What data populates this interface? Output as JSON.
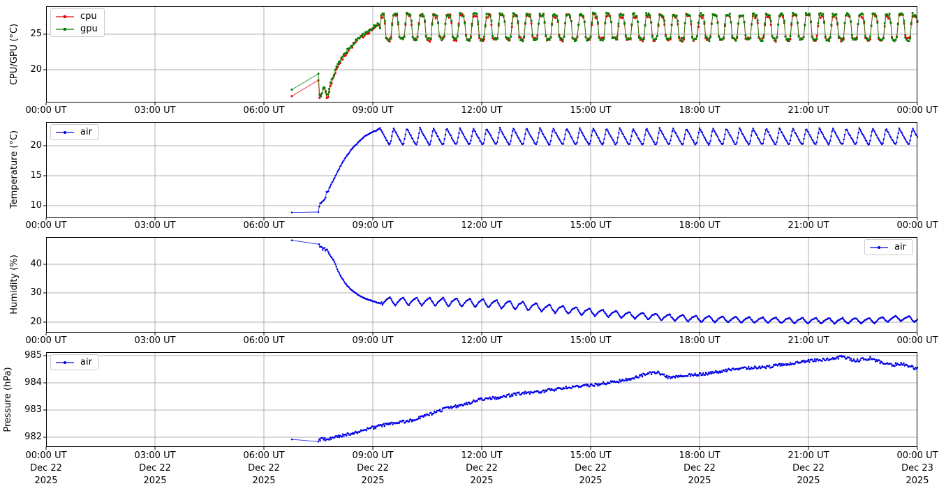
{
  "figure": {
    "background": "#ffffff",
    "frame_color": "#000000",
    "grid_color": "#b0b0b0",
    "legend_border": "#cccccc",
    "text_color": "#000000"
  },
  "chart_data": [
    {
      "id": "cpu-gpu-temperature",
      "type": "line",
      "ylabel": "CPU/GPU (°C)",
      "ylim": [
        15.4,
        28.9
      ],
      "yticks": [
        20,
        25
      ],
      "xlim_hours": [
        0,
        24
      ],
      "xticks_hours": [
        0,
        3,
        6,
        9,
        12,
        15,
        18,
        21,
        24
      ],
      "xtick_labels": [
        "00:00 UT",
        "03:00 UT",
        "06:00 UT",
        "09:00 UT",
        "12:00 UT",
        "15:00 UT",
        "18:00 UT",
        "21:00 UT",
        "00:00 UT"
      ],
      "grid": true,
      "legend": {
        "position": "top-left",
        "entries": [
          {
            "label": "cpu",
            "color": "#e60000",
            "marker": "square"
          },
          {
            "label": "gpu",
            "color": "#008000",
            "marker": "square"
          }
        ]
      },
      "series": [
        {
          "name": "cpu",
          "color": "#e60000",
          "marker": "square",
          "marker_size": 2.8,
          "sample_minutes": 2,
          "noise": 0.28,
          "seed": 7,
          "sparse_points": [
            [
              6.77,
              16.3
            ]
          ],
          "base": [
            [
              7.5,
              18.8
            ],
            [
              7.53,
              16.3
            ],
            [
              7.58,
              16.1
            ],
            [
              7.63,
              17.3
            ],
            [
              7.68,
              17.5
            ],
            [
              7.72,
              16.2
            ],
            [
              7.78,
              16.1
            ],
            [
              7.83,
              17.8
            ],
            [
              7.92,
              18.9
            ],
            [
              8.0,
              20.2
            ],
            [
              8.17,
              21.6
            ],
            [
              8.33,
              22.8
            ],
            [
              8.5,
              23.7
            ],
            [
              8.67,
              24.5
            ],
            [
              8.83,
              25.2
            ],
            [
              9.0,
              25.7
            ],
            [
              9.19,
              26.4
            ],
            [
              9.2,
              25.9
            ],
            [
              24,
              25.9
            ]
          ],
          "osc": {
            "start": 9.2,
            "period_minutes": 22,
            "phase": 0,
            "amplitude": [
              [
                9.2,
                1.7
              ],
              [
                24,
                1.7
              ]
            ],
            "wave": [
              [
                0,
                1
              ],
              [
                0.32,
                0.9
              ],
              [
                0.38,
                0.2
              ],
              [
                0.45,
                -0.75
              ],
              [
                0.55,
                -0.95
              ],
              [
                0.8,
                -1
              ],
              [
                0.88,
                -0.2
              ],
              [
                0.95,
                0.8
              ],
              [
                1,
                1
              ]
            ]
          }
        },
        {
          "name": "gpu",
          "color": "#008000",
          "marker": "square",
          "marker_size": 2.8,
          "sample_minutes": 2,
          "noise": 0.22,
          "seed": 13,
          "sparse_points": [
            [
              6.77,
              17.2
            ]
          ],
          "base": [
            [
              7.5,
              19.4
            ],
            [
              7.53,
              16.6
            ],
            [
              7.58,
              16.4
            ],
            [
              7.63,
              17.6
            ],
            [
              7.68,
              17.8
            ],
            [
              7.72,
              16.6
            ],
            [
              7.78,
              16.5
            ],
            [
              7.83,
              18.1
            ],
            [
              7.92,
              19.2
            ],
            [
              8.0,
              20.5
            ],
            [
              8.17,
              21.9
            ],
            [
              8.33,
              23.0
            ],
            [
              8.5,
              23.9
            ],
            [
              8.67,
              24.7
            ],
            [
              8.83,
              25.4
            ],
            [
              9.0,
              25.9
            ],
            [
              9.19,
              26.6
            ],
            [
              9.2,
              26.0
            ],
            [
              24,
              26.0
            ]
          ],
          "osc": {
            "start": 9.2,
            "period_minutes": 22,
            "phase": 0,
            "amplitude": [
              [
                9.2,
                1.8
              ],
              [
                24,
                1.8
              ]
            ],
            "wave": [
              [
                0,
                1
              ],
              [
                0.32,
                0.9
              ],
              [
                0.38,
                0.2
              ],
              [
                0.45,
                -0.75
              ],
              [
                0.55,
                -0.95
              ],
              [
                0.8,
                -1
              ],
              [
                0.88,
                -0.2
              ],
              [
                0.95,
                0.8
              ],
              [
                1,
                1
              ]
            ]
          }
        }
      ]
    },
    {
      "id": "air-temperature",
      "type": "line",
      "ylabel": "Temperature (°C)",
      "ylim": [
        8.0,
        24.0
      ],
      "yticks": [
        10,
        15,
        20
      ],
      "xlim_hours": [
        0,
        24
      ],
      "xticks_hours": [
        0,
        3,
        6,
        9,
        12,
        15,
        18,
        21,
        24
      ],
      "xtick_labels": [
        "00:00 UT",
        "03:00 UT",
        "06:00 UT",
        "09:00 UT",
        "12:00 UT",
        "15:00 UT",
        "18:00 UT",
        "21:00 UT",
        "00:00 UT"
      ],
      "grid": true,
      "legend": {
        "position": "top-left",
        "entries": [
          {
            "label": "air",
            "color": "#0000e6",
            "marker": "dot"
          }
        ]
      },
      "series": [
        {
          "name": "air",
          "color": "#0000e6",
          "marker": "dot",
          "marker_size": 1.25,
          "sample_minutes": 1.5,
          "noise": 0.07,
          "seed": 3,
          "sparse_points": [
            [
              6.77,
              8.85
            ]
          ],
          "base": [
            [
              7.5,
              8.9
            ],
            [
              7.52,
              9.8
            ],
            [
              7.55,
              10.4
            ],
            [
              7.6,
              10.6
            ],
            [
              7.65,
              10.9
            ],
            [
              7.7,
              11.4
            ],
            [
              7.73,
              12.5
            ],
            [
              7.76,
              12.2
            ],
            [
              7.8,
              12.9
            ],
            [
              7.9,
              14.1
            ],
            [
              8.0,
              15.3
            ],
            [
              8.1,
              16.5
            ],
            [
              8.25,
              18.1
            ],
            [
              8.4,
              19.3
            ],
            [
              8.5,
              20.0
            ],
            [
              8.65,
              20.9
            ],
            [
              8.8,
              21.7
            ],
            [
              9.0,
              22.3
            ],
            [
              9.19,
              22.9
            ],
            [
              9.2,
              21.6
            ],
            [
              24,
              21.6
            ]
          ],
          "osc": {
            "start": 9.2,
            "period_minutes": 22,
            "phase": 0,
            "amplitude": [
              [
                9.2,
                1.4
              ],
              [
                24,
                1.35
              ]
            ],
            "wave": [
              [
                0,
                1
              ],
              [
                0.4,
                -0.2
              ],
              [
                0.68,
                -1
              ],
              [
                0.78,
                -0.85
              ],
              [
                1,
                1
              ]
            ]
          }
        }
      ]
    },
    {
      "id": "humidity",
      "type": "line",
      "ylabel": "Humidity (%)",
      "ylim": [
        16.5,
        49.2
      ],
      "yticks": [
        20,
        30,
        40
      ],
      "xlim_hours": [
        0,
        24
      ],
      "xticks_hours": [
        0,
        3,
        6,
        9,
        12,
        15,
        18,
        21,
        24
      ],
      "xtick_labels": [
        "00:00 UT",
        "03:00 UT",
        "06:00 UT",
        "09:00 UT",
        "12:00 UT",
        "15:00 UT",
        "18:00 UT",
        "21:00 UT",
        "00:00 UT"
      ],
      "grid": true,
      "legend": {
        "position": "top-right",
        "entries": [
          {
            "label": "air",
            "color": "#0000e6",
            "marker": "dot"
          }
        ]
      },
      "series": [
        {
          "name": "air",
          "color": "#0000e6",
          "marker": "dot",
          "marker_size": 1.25,
          "sample_minutes": 1.5,
          "noise": 0.12,
          "seed": 5,
          "sparse_points": [
            [
              6.77,
              48.1
            ]
          ],
          "base": [
            [
              7.52,
              46.7
            ],
            [
              7.55,
              45.6
            ],
            [
              7.58,
              46.2
            ],
            [
              7.62,
              44.9
            ],
            [
              7.66,
              45.8
            ],
            [
              7.7,
              44.4
            ],
            [
              7.74,
              45.2
            ],
            [
              7.78,
              43.8
            ],
            [
              7.82,
              43.0
            ],
            [
              7.87,
              42.2
            ],
            [
              7.95,
              40.6
            ],
            [
              8.0,
              38.9
            ],
            [
              8.06,
              37.2
            ],
            [
              8.12,
              35.8
            ],
            [
              8.2,
              34.2
            ],
            [
              8.28,
              32.8
            ],
            [
              8.37,
              31.6
            ],
            [
              8.46,
              30.6
            ],
            [
              8.55,
              29.8
            ],
            [
              8.65,
              29.0
            ],
            [
              8.75,
              28.4
            ],
            [
              8.85,
              27.9
            ],
            [
              9.0,
              27.3
            ],
            [
              9.1,
              26.9
            ],
            [
              9.24,
              26.4
            ],
            [
              9.25,
              27.2
            ],
            [
              10.5,
              27.1
            ],
            [
              12,
              26.6
            ],
            [
              13,
              25.8
            ],
            [
              14,
              24.6
            ],
            [
              15,
              23.5
            ],
            [
              16,
              22.5
            ],
            [
              17,
              21.8
            ],
            [
              18,
              21.2
            ],
            [
              19,
              20.9
            ],
            [
              20,
              20.7
            ],
            [
              21,
              20.6
            ],
            [
              22,
              20.5
            ],
            [
              22.8,
              20.6
            ],
            [
              23.5,
              21.4
            ],
            [
              24,
              21.0
            ]
          ],
          "osc": {
            "start": 9.25,
            "period_minutes": 22,
            "phase": 0,
            "amplitude": [
              [
                9.25,
                1.4
              ],
              [
                13,
                1.5
              ],
              [
                16,
                1.2
              ],
              [
                20,
                1.0
              ],
              [
                24,
                1.0
              ]
            ],
            "wave": [
              [
                0,
                -1
              ],
              [
                0.3,
                0.3
              ],
              [
                0.62,
                1
              ],
              [
                0.75,
                0.2
              ],
              [
                1,
                -1
              ]
            ]
          }
        }
      ]
    },
    {
      "id": "pressure",
      "type": "line",
      "ylabel": "Pressure (hPa)",
      "ylim": [
        981.64,
        985.12
      ],
      "yticks": [
        982,
        983,
        984,
        985
      ],
      "xlim_hours": [
        0,
        24
      ],
      "xticks_hours": [
        0,
        3,
        6,
        9,
        12,
        15,
        18,
        21,
        24
      ],
      "xtick_labels": [
        "00:00 UT",
        "03:00 UT",
        "06:00 UT",
        "09:00 UT",
        "12:00 UT",
        "15:00 UT",
        "18:00 UT",
        "21:00 UT",
        "00:00 UT"
      ],
      "xtick_dates": [
        "Dec 22",
        "Dec 22",
        "Dec 22",
        "Dec 22",
        "Dec 22",
        "Dec 22",
        "Dec 22",
        "Dec 22",
        "Dec 23"
      ],
      "xtick_years": [
        "2025",
        "2025",
        "2025",
        "2025",
        "2025",
        "2025",
        "2025",
        "2025",
        "2025"
      ],
      "grid": true,
      "legend": {
        "position": "top-left",
        "entries": [
          {
            "label": "air",
            "color": "#0000e6",
            "marker": "dot"
          }
        ]
      },
      "series": [
        {
          "name": "air",
          "color": "#0000e6",
          "marker": "dot",
          "marker_size": 1.25,
          "sample_minutes": 1.5,
          "noise": 0.055,
          "seed": 9,
          "sparse_points": [
            [
              6.77,
              981.92
            ]
          ],
          "base": [
            [
              7.5,
              981.87
            ],
            [
              7.6,
              981.95
            ],
            [
              7.75,
              981.9
            ],
            [
              7.9,
              981.98
            ],
            [
              8.0,
              982.0
            ],
            [
              8.25,
              982.1
            ],
            [
              8.5,
              982.15
            ],
            [
              8.75,
              982.25
            ],
            [
              9.0,
              982.35
            ],
            [
              9.5,
              982.5
            ],
            [
              10.0,
              982.6
            ],
            [
              10.5,
              982.8
            ],
            [
              11.0,
              983.05
            ],
            [
              11.5,
              983.2
            ],
            [
              12.0,
              983.4
            ],
            [
              12.5,
              983.45
            ],
            [
              13.0,
              983.6
            ],
            [
              13.5,
              983.65
            ],
            [
              14.0,
              983.75
            ],
            [
              14.5,
              983.85
            ],
            [
              15.0,
              983.9
            ],
            [
              15.5,
              984.0
            ],
            [
              16.0,
              984.1
            ],
            [
              16.5,
              984.3
            ],
            [
              16.8,
              984.4
            ],
            [
              17.2,
              984.15
            ],
            [
              17.5,
              984.25
            ],
            [
              18.0,
              984.3
            ],
            [
              18.5,
              984.4
            ],
            [
              19.0,
              984.5
            ],
            [
              19.5,
              984.55
            ],
            [
              20.0,
              984.6
            ],
            [
              20.5,
              984.7
            ],
            [
              21.0,
              984.8
            ],
            [
              21.5,
              984.85
            ],
            [
              21.9,
              984.95
            ],
            [
              22.3,
              984.8
            ],
            [
              22.7,
              984.9
            ],
            [
              23.0,
              984.75
            ],
            [
              23.3,
              984.65
            ],
            [
              23.6,
              984.7
            ],
            [
              24.0,
              984.5
            ]
          ]
        }
      ]
    }
  ]
}
